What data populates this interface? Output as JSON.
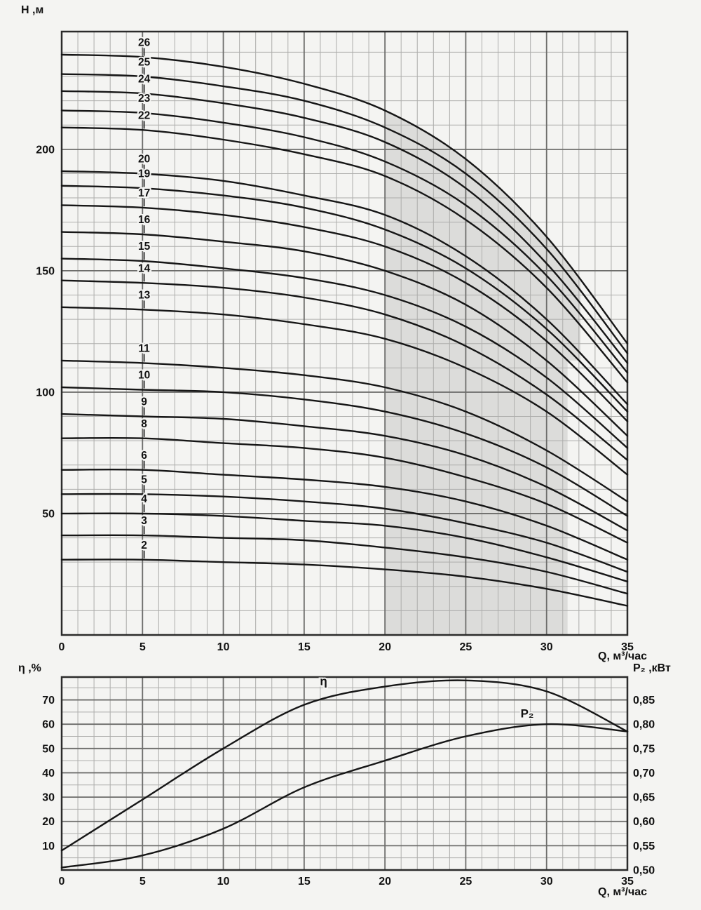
{
  "style": {
    "bg": "#f4f4f2",
    "curve_color": "#161616",
    "grid_minor_color": "#adadab",
    "grid_major_color": "#6d6d6b",
    "axis_color": "#2b2b2b",
    "shade_color": "#dcdcda",
    "text_color": "#111111"
  },
  "chart_data": [
    {
      "id": "head_vs_flow",
      "type": "line",
      "title": "",
      "xlabel": "Q, м³/час",
      "ylabel": "H ,м",
      "xlim": [
        0,
        35
      ],
      "ylim": [
        0,
        248.5
      ],
      "grid": true,
      "x_ticks": [
        0,
        5,
        10,
        15,
        20,
        25,
        30,
        35
      ],
      "y_ticks": [
        50,
        100,
        150,
        200
      ],
      "x_minor_step": 1,
      "y_minor_step": 10,
      "series_label_x": 5.1,
      "x": [
        0,
        5,
        10,
        15,
        20,
        25,
        30,
        35
      ],
      "series": [
        {
          "name": "26",
          "values": [
            239,
            238,
            234,
            227,
            216,
            196,
            164,
            120
          ]
        },
        {
          "name": "25",
          "values": [
            231,
            230,
            226,
            220,
            209,
            190,
            159,
            116
          ]
        },
        {
          "name": "24",
          "values": [
            224,
            223,
            219,
            213,
            203,
            184,
            153,
            112
          ]
        },
        {
          "name": "23",
          "values": [
            216,
            215,
            211,
            205,
            195,
            177,
            148,
            108
          ]
        },
        {
          "name": "22",
          "values": [
            209,
            208,
            204,
            198,
            189,
            171,
            143,
            104
          ]
        },
        {
          "name": "20",
          "values": [
            191,
            190,
            187,
            181,
            173,
            156,
            130,
            95
          ]
        },
        {
          "name": "19",
          "values": [
            185,
            184,
            181,
            176,
            167,
            151,
            126,
            92
          ]
        },
        {
          "name": "17",
          "values": [
            177,
            176,
            173,
            168,
            160,
            145,
            121,
            88
          ]
        },
        {
          "name": "16",
          "values": [
            166,
            165,
            162,
            158,
            150,
            136,
            113,
            82
          ]
        },
        {
          "name": "15",
          "values": [
            155,
            154,
            151,
            147,
            140,
            127,
            106,
            77
          ]
        },
        {
          "name": "14",
          "values": [
            146,
            145,
            143,
            139,
            132,
            119,
            99,
            72
          ]
        },
        {
          "name": "13",
          "values": [
            135,
            134,
            132,
            128,
            122,
            110,
            92,
            66
          ]
        },
        {
          "name": "11",
          "values": [
            113,
            112,
            110,
            107,
            102,
            92,
            76,
            55
          ]
        },
        {
          "name": "10",
          "values": [
            102,
            101,
            100,
            97,
            92,
            83,
            69,
            49
          ]
        },
        {
          "name": "9",
          "values": [
            91,
            90,
            89,
            86,
            82,
            74,
            61,
            43
          ]
        },
        {
          "name": "8",
          "values": [
            81,
            81,
            79,
            77,
            73,
            65,
            54,
            38
          ]
        },
        {
          "name": "6",
          "values": [
            68,
            68,
            66,
            64,
            61,
            55,
            45,
            31
          ]
        },
        {
          "name": "5",
          "values": [
            58,
            58,
            57,
            55,
            52,
            46,
            38,
            26
          ]
        },
        {
          "name": "4",
          "values": [
            50,
            50,
            49,
            47,
            45,
            40,
            32,
            22
          ]
        },
        {
          "name": "3",
          "values": [
            41,
            41,
            40,
            39,
            36,
            32,
            26,
            17
          ]
        },
        {
          "name": "2",
          "values": [
            31,
            31,
            30,
            29,
            27,
            24,
            19,
            12
          ]
        }
      ],
      "shaded_region": {
        "x_start": 20,
        "boundary_x": [
          20,
          25,
          30,
          32.1
        ],
        "boundary_h": [
          216,
          196,
          164,
          145.5
        ],
        "x_end_upper": 32.1,
        "x_end_lower": 31.3,
        "step_h": 113,
        "h_bottom": 0
      }
    },
    {
      "id": "efficiency_power_vs_flow",
      "type": "line",
      "title": "",
      "xlabel": "Q, м³/час",
      "ylabel_left": "η ,%",
      "ylabel_right": "P₂ ,кВт",
      "xlim": [
        0,
        35
      ],
      "ylim_left": [
        0,
        79.4
      ],
      "ylim_right": [
        0.5,
        0.897
      ],
      "grid": true,
      "x_ticks": [
        0,
        5,
        10,
        15,
        20,
        25,
        30,
        35
      ],
      "y_ticks_left": [
        10,
        20,
        30,
        40,
        50,
        60,
        70
      ],
      "y_ticks_right": [
        {
          "label": "0,50",
          "v": 0.5
        },
        {
          "label": "0,55",
          "v": 0.55
        },
        {
          "label": "0,60",
          "v": 0.6
        },
        {
          "label": "0,65",
          "v": 0.65
        },
        {
          "label": "0,70",
          "v": 0.7
        },
        {
          "label": "0,75",
          "v": 0.75
        },
        {
          "label": "0,80",
          "v": 0.8
        },
        {
          "label": "0,85",
          "v": 0.85
        }
      ],
      "x_minor_step": 1,
      "y_minor_step_left": 5,
      "x": [
        0,
        5,
        10,
        15,
        20,
        25,
        30,
        35
      ],
      "series": [
        {
          "name": "η",
          "axis": "left",
          "values": [
            8,
            29,
            50,
            68,
            75.5,
            78,
            73.5,
            57
          ],
          "label_pos": {
            "x": 16.2,
            "y": 77.5
          }
        },
        {
          "name": "P₂",
          "axis": "right",
          "values": [
            0.505,
            0.53,
            0.585,
            0.67,
            0.725,
            0.775,
            0.8,
            0.785
          ],
          "label_pos": {
            "x": 28.8,
            "y": 0.821
          }
        }
      ]
    }
  ]
}
